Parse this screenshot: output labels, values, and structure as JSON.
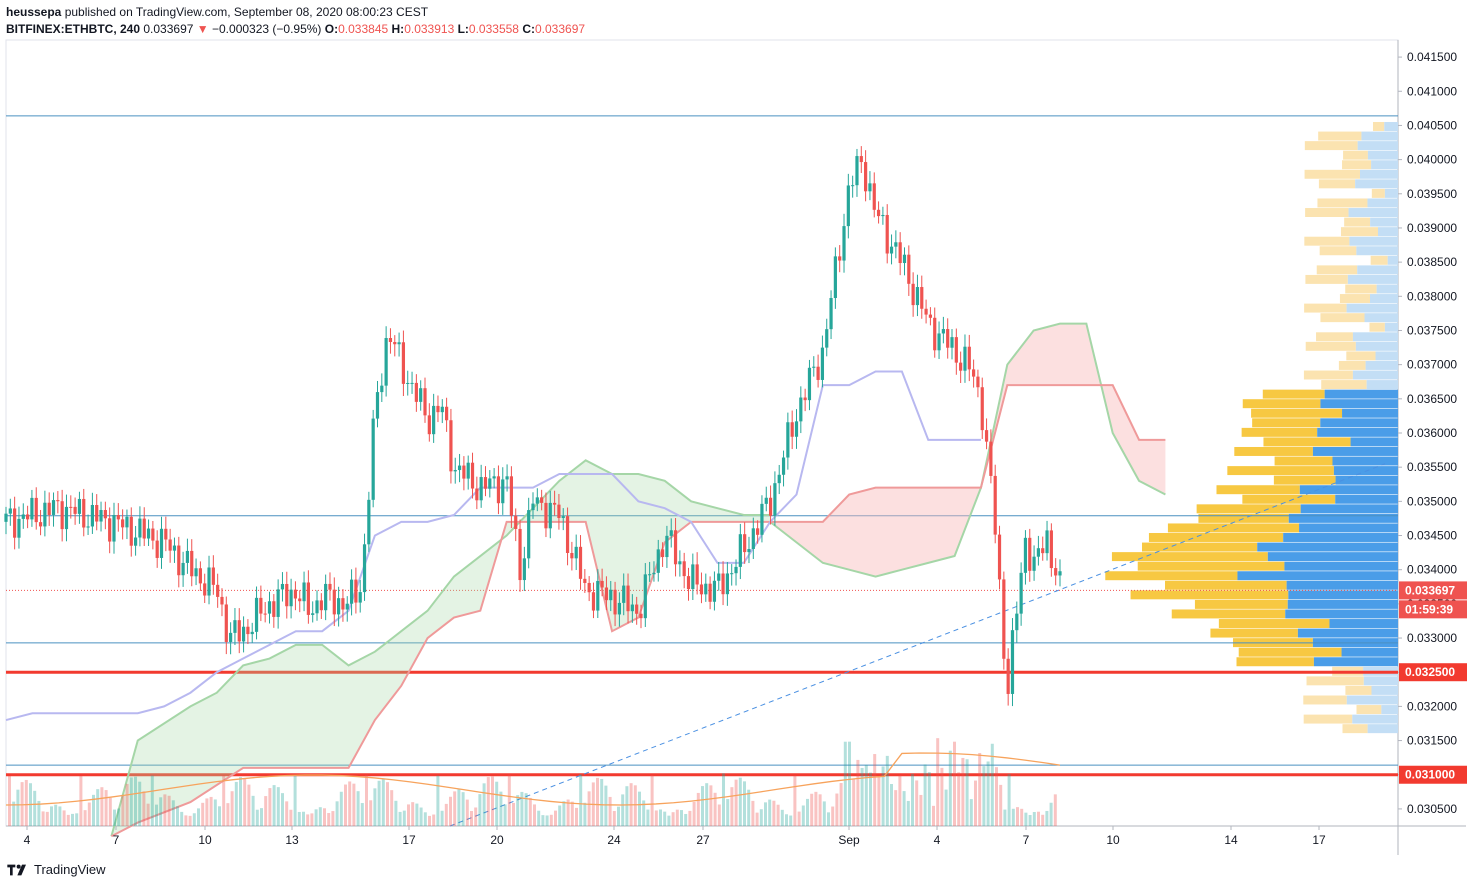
{
  "header": {
    "author": "heussepa",
    "published_text": "published on TradingView.com, September 08, 2020 08:00:23 CEST",
    "symbol": "BITFINEX:ETHBTC, 240",
    "last": "0.033697",
    "change_arrow": "▼",
    "change": "−0.000323 (−0.95%)",
    "o_label": "O:",
    "o": "0.033845",
    "h_label": "H:",
    "h": "0.033913",
    "l_label": "L:",
    "l": "0.033558",
    "c_label": "C:",
    "c": "0.033697"
  },
  "footer": {
    "brand": "TradingView",
    "logo_icon": "tradingview-logo-icon"
  },
  "colors": {
    "up": "#26a69a",
    "down": "#ef5350",
    "support": "#f23a2f",
    "cloud_up": "#a5d6a7",
    "cloud_down": "#f8bbbb",
    "kijun": "#b8b8f0",
    "vp_up": "#f7c842",
    "vp_down": "#4a9de8"
  },
  "chart_data": {
    "type": "candlestick",
    "y_axis": {
      "ticks": [
        "0.041500",
        "0.041000",
        "0.040500",
        "0.040000",
        "0.039500",
        "0.039000",
        "0.038500",
        "0.038000",
        "0.037500",
        "0.037000",
        "0.036500",
        "0.036000",
        "0.035500",
        "0.035000",
        "0.034500",
        "0.034000",
        "0.033500",
        "0.033000",
        "0.032500",
        "0.032000",
        "0.031500",
        "0.031000",
        "0.030500"
      ],
      "range": [
        0.03025,
        0.04175
      ]
    },
    "x_axis": {
      "ticks": [
        "4",
        "7",
        "10",
        "13",
        "17",
        "20",
        "24",
        "27",
        "Sep",
        "4",
        "7",
        "10",
        "14",
        "17"
      ]
    },
    "price_labels": [
      {
        "text": "0.033697",
        "value": 0.033697,
        "color": "#ef5350"
      },
      {
        "text": "01:59:39",
        "value": 0.03342,
        "color": "#ef5350"
      },
      {
        "text": "0.032500",
        "value": 0.0325,
        "color": "#f23a2f"
      },
      {
        "text": "0.031000",
        "value": 0.031,
        "color": "#f23a2f"
      }
    ],
    "horizontal_lines": [
      {
        "value": 0.04064,
        "color": "#4a90c0",
        "width": 1
      },
      {
        "value": 0.03479,
        "color": "#4a90c0",
        "width": 1
      },
      {
        "value": 0.03293,
        "color": "#4a90c0",
        "width": 1
      },
      {
        "value": 0.03114,
        "color": "#4a90c0",
        "width": 1
      },
      {
        "value": 0.0325,
        "color": "#f23a2f",
        "width": 3
      },
      {
        "value": 0.031,
        "color": "#f23a2f",
        "width": 3
      }
    ],
    "last_price": 0.033697,
    "close_path": [
      [
        0,
        0.0347
      ],
      [
        2,
        0.0349
      ],
      [
        4,
        0.0347
      ],
      [
        6,
        0.0344
      ],
      [
        7,
        0.034
      ],
      [
        8,
        0.0337
      ],
      [
        8.5,
        0.033
      ],
      [
        9,
        0.0331
      ],
      [
        10,
        0.0335
      ],
      [
        11,
        0.0337
      ],
      [
        11.5,
        0.0334
      ],
      [
        12,
        0.0336
      ],
      [
        13,
        0.0335
      ],
      [
        13.5,
        0.0338
      ],
      [
        14,
        0.0363
      ],
      [
        14.5,
        0.0375
      ],
      [
        15,
        0.037
      ],
      [
        16,
        0.0362
      ],
      [
        16.5,
        0.0364
      ],
      [
        17,
        0.0355
      ],
      [
        18,
        0.0352
      ],
      [
        19,
        0.0353
      ],
      [
        19.5,
        0.034
      ],
      [
        20,
        0.035
      ],
      [
        21,
        0.0348
      ],
      [
        22,
        0.0337
      ],
      [
        23,
        0.0336
      ],
      [
        24,
        0.0334
      ],
      [
        25,
        0.0345
      ],
      [
        26,
        0.0338
      ],
      [
        27,
        0.0337
      ],
      [
        28,
        0.0343
      ],
      [
        29,
        0.035
      ],
      [
        30,
        0.0363
      ],
      [
        31,
        0.0372
      ],
      [
        32,
        0.0396
      ],
      [
        32.5,
        0.04
      ],
      [
        33,
        0.0392
      ],
      [
        34,
        0.0385
      ],
      [
        35,
        0.0376
      ],
      [
        36,
        0.0372
      ],
      [
        36.5,
        0.037
      ],
      [
        37,
        0.0365
      ],
      [
        37.5,
        0.0348
      ],
      [
        38,
        0.0322
      ],
      [
        38.3,
        0.0332
      ],
      [
        38.7,
        0.0345
      ],
      [
        39,
        0.034
      ],
      [
        39.5,
        0.0345
      ],
      [
        40,
        0.0337
      ]
    ],
    "volume_profile_note": "visible range volume profile on right edge"
  }
}
